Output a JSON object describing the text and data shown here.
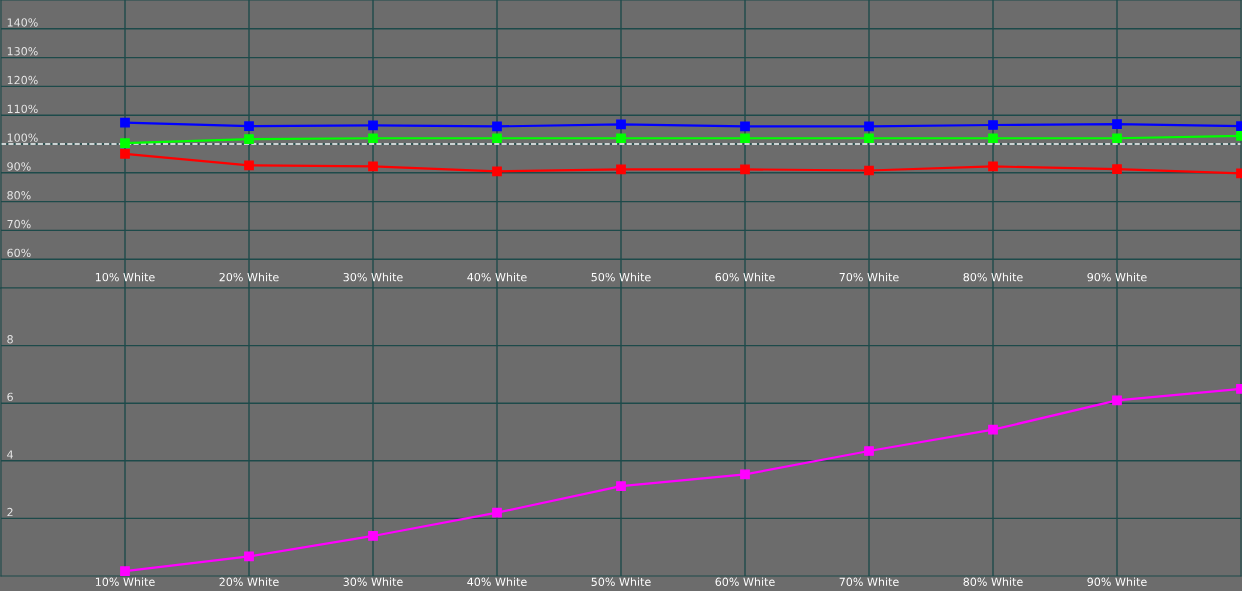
{
  "chart_data": [
    {
      "type": "line",
      "x": [
        10,
        20,
        30,
        40,
        50,
        60,
        70,
        80,
        90,
        100
      ],
      "xlim": [
        0,
        100
      ],
      "xticks": [
        {
          "value": 10,
          "label": "10% White"
        },
        {
          "value": 20,
          "label": "20% White"
        },
        {
          "value": 30,
          "label": "30% White"
        },
        {
          "value": 40,
          "label": "40% White"
        },
        {
          "value": 50,
          "label": "50% White"
        },
        {
          "value": 60,
          "label": "60% White"
        },
        {
          "value": 70,
          "label": "70% White"
        },
        {
          "value": 80,
          "label": "80% White"
        },
        {
          "value": 90,
          "label": "90% White"
        }
      ],
      "ylim": [
        50,
        150
      ],
      "yticks": [
        {
          "value": 60,
          "label": "60%"
        },
        {
          "value": 70,
          "label": "70%"
        },
        {
          "value": 80,
          "label": "80%"
        },
        {
          "value": 90,
          "label": "90%"
        },
        {
          "value": 100,
          "label": "100%"
        },
        {
          "value": 110,
          "label": "110%"
        },
        {
          "value": 120,
          "label": "120%"
        },
        {
          "value": 130,
          "label": "130%"
        },
        {
          "value": 140,
          "label": "140%"
        }
      ],
      "series": [
        {
          "color": "#0000ff",
          "values": [
            107.4,
            106.2,
            106.5,
            106.1,
            106.8,
            106.1,
            106.1,
            106.6,
            106.9,
            106.2
          ]
        },
        {
          "color": "#00ff00",
          "values": [
            100.3,
            101.7,
            102.0,
            102.0,
            102.0,
            102.0,
            102.0,
            102.0,
            102.0,
            102.8
          ]
        },
        {
          "color": "#ff0000",
          "values": [
            96.6,
            92.6,
            92.2,
            90.5,
            91.2,
            91.2,
            90.8,
            92.2,
            91.3,
            89.8
          ]
        }
      ],
      "ref_lines": [
        {
          "axis": "y",
          "value": 100,
          "color": "#ffffff",
          "line_style": "dashed"
        }
      ],
      "marker": "square",
      "grid": true,
      "legend": false
    },
    {
      "type": "line",
      "x": [
        10,
        20,
        30,
        40,
        50,
        60,
        70,
        80,
        90,
        100
      ],
      "xlim": [
        0,
        100
      ],
      "xticks": [
        {
          "value": 10,
          "label": "10% White"
        },
        {
          "value": 20,
          "label": "20% White"
        },
        {
          "value": 30,
          "label": "30% White"
        },
        {
          "value": 40,
          "label": "40% White"
        },
        {
          "value": 50,
          "label": "50% White"
        },
        {
          "value": 60,
          "label": "60% White"
        },
        {
          "value": 70,
          "label": "70% White"
        },
        {
          "value": 80,
          "label": "80% White"
        },
        {
          "value": 90,
          "label": "90% White"
        }
      ],
      "ylim": [
        0,
        10
      ],
      "yticks": [
        2,
        4,
        6,
        8
      ],
      "series": [
        {
          "color": "#ff00ff",
          "values": [
            0.17,
            0.68,
            1.39,
            2.2,
            3.12,
            3.53,
            4.34,
            5.08,
            6.1,
            6.5
          ]
        }
      ],
      "marker": "square",
      "grid": true,
      "legend": false
    }
  ]
}
